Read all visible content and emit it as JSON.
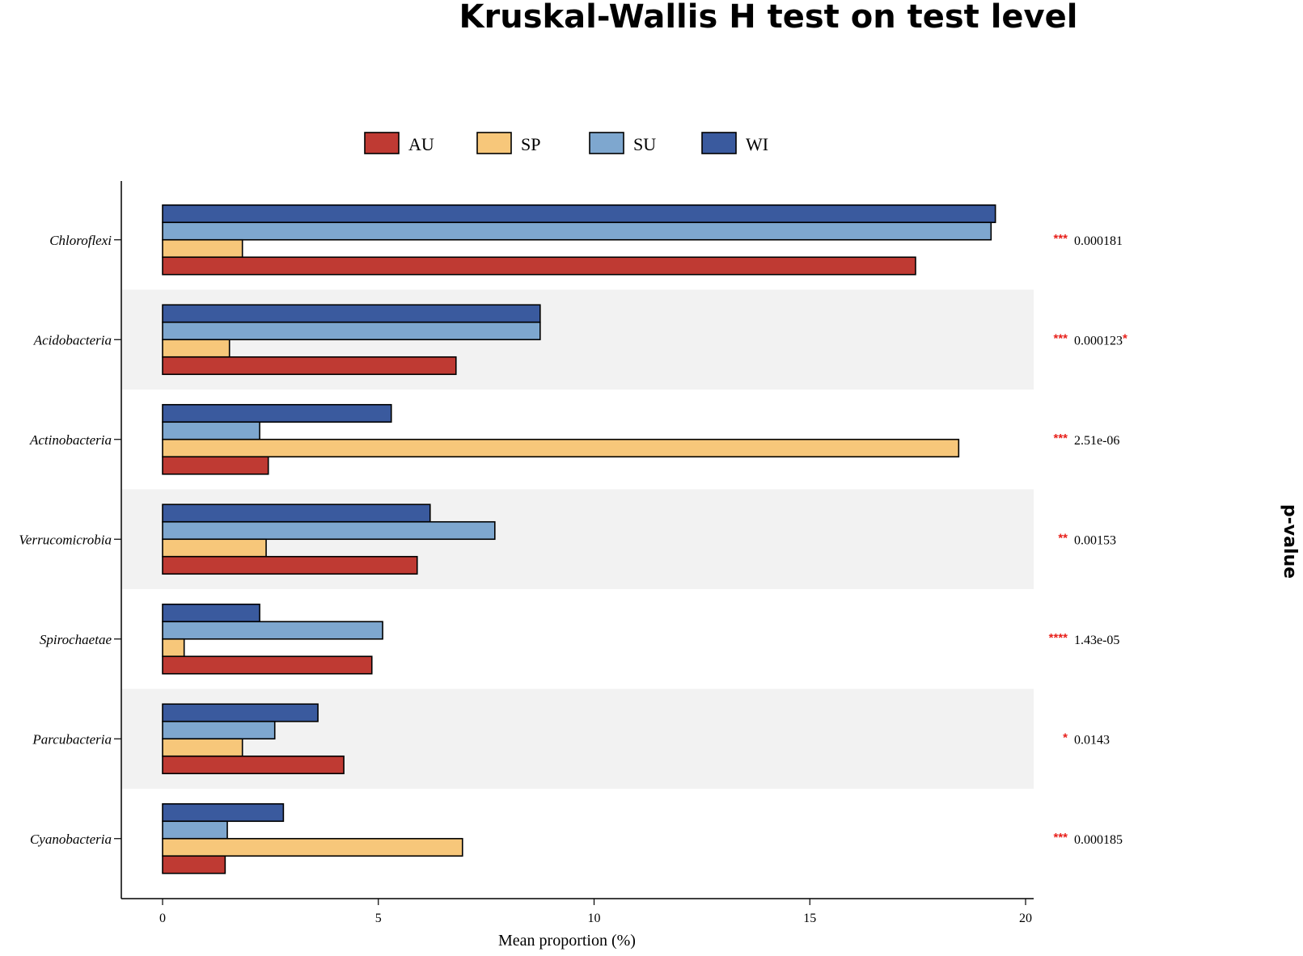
{
  "chart_data": {
    "type": "bar",
    "orientation": "horizontal",
    "title": "Kruskal-Wallis H test on test level",
    "xlabel": "Mean proportion (%)",
    "ylabel": "",
    "right_axis_title": "p-value",
    "xlim": [
      0,
      20
    ],
    "xticks": [
      "0",
      "5",
      "10",
      "15",
      "20"
    ],
    "categories": [
      "Chloroflexi",
      "Acidobacteria",
      "Actinobacteria",
      "Verrucomicrobia",
      "Spirochaetae",
      "Parcubacteria",
      "Cyanobacteria"
    ],
    "series": [
      {
        "name": "WI",
        "color": "#3a5a9e",
        "values": [
          19.3,
          8.75,
          5.3,
          6.2,
          2.25,
          3.6,
          2.8
        ]
      },
      {
        "name": "SU",
        "color": "#7ea7cf",
        "values": [
          19.2,
          8.75,
          2.25,
          7.7,
          5.1,
          2.6,
          1.5
        ]
      },
      {
        "name": "SP",
        "color": "#f7c77a",
        "values": [
          1.85,
          1.55,
          18.45,
          2.4,
          0.5,
          1.85,
          6.95
        ]
      },
      {
        "name": "AU",
        "color": "#bf3a33",
        "values": [
          17.45,
          6.8,
          2.45,
          5.9,
          4.85,
          4.2,
          1.45
        ]
      }
    ],
    "legend": {
      "position": "top",
      "items": [
        {
          "label": "AU",
          "color": "#bf3a33"
        },
        {
          "label": "SP",
          "color": "#f7c77a"
        },
        {
          "label": "SU",
          "color": "#7ea7cf"
        },
        {
          "label": "WI",
          "color": "#3a5a9e"
        }
      ]
    },
    "p_values": [
      {
        "stars": "***",
        "value": "0.000181",
        "suffix": ""
      },
      {
        "stars": "***",
        "value": "0.000123",
        "suffix": "*"
      },
      {
        "stars": "***",
        "value": "2.51e-06",
        "suffix": ""
      },
      {
        "stars": "**",
        "value": "0.00153",
        "suffix": ""
      },
      {
        "stars": "****",
        "value": "1.43e-05",
        "suffix": ""
      },
      {
        "stars": "*",
        "value": "0.0143",
        "suffix": ""
      },
      {
        "stars": "***",
        "value": "0.000185",
        "suffix": ""
      }
    ],
    "band_color": "#f2f2f2"
  }
}
